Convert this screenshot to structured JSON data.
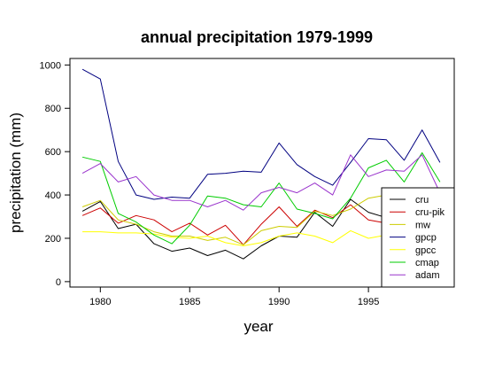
{
  "chart_data": {
    "type": "line",
    "title": "annual precipitation 1979-1999",
    "xlabel": "year",
    "ylabel": "precipitation (mm)",
    "x": [
      1979,
      1980,
      1981,
      1982,
      1983,
      1984,
      1985,
      1986,
      1987,
      1988,
      1989,
      1990,
      1991,
      1992,
      1993,
      1994,
      1995,
      1996,
      1997,
      1998,
      1999
    ],
    "xlim": [
      1978.3,
      1999.8
    ],
    "ylim": [
      -25,
      1030
    ],
    "xticks": [
      1980,
      1985,
      1990,
      1995
    ],
    "yticks": [
      0,
      200,
      400,
      600,
      800,
      1000
    ],
    "grid": false,
    "legend_position": "bottom-right",
    "series": [
      {
        "name": "cru",
        "color": "#000000",
        "values": [
          325,
          370,
          245,
          265,
          175,
          140,
          155,
          120,
          145,
          105,
          165,
          210,
          205,
          320,
          255,
          380,
          320,
          295,
          290,
          300,
          285
        ]
      },
      {
        "name": "cru-pik",
        "color": "#cc0000",
        "values": [
          305,
          340,
          270,
          305,
          285,
          230,
          270,
          215,
          260,
          170,
          265,
          345,
          255,
          330,
          295,
          355,
          285,
          270,
          255,
          260,
          250
        ]
      },
      {
        "name": "mw",
        "color": "#cccc00",
        "values": [
          345,
          375,
          285,
          265,
          230,
          210,
          210,
          190,
          205,
          170,
          235,
          255,
          250,
          325,
          305,
          335,
          385,
          400,
          390,
          390,
          380
        ]
      },
      {
        "name": "gpcp",
        "color": "#000080",
        "values": [
          980,
          935,
          555,
          400,
          380,
          390,
          385,
          495,
          500,
          510,
          505,
          640,
          540,
          485,
          445,
          550,
          660,
          655,
          560,
          700,
          550
        ]
      },
      {
        "name": "gpcc",
        "color": "#ffff00",
        "values": [
          230,
          230,
          225,
          225,
          220,
          205,
          200,
          210,
          180,
          165,
          180,
          210,
          225,
          210,
          180,
          235,
          200,
          215,
          220,
          225,
          215
        ]
      },
      {
        "name": "cmap",
        "color": "#00cc00",
        "values": [
          575,
          555,
          315,
          275,
          215,
          175,
          260,
          395,
          385,
          355,
          345,
          455,
          335,
          315,
          290,
          385,
          525,
          560,
          460,
          595,
          460
        ]
      },
      {
        "name": "adam",
        "color": "#9933cc",
        "values": [
          500,
          545,
          460,
          485,
          400,
          375,
          375,
          345,
          375,
          330,
          410,
          435,
          410,
          455,
          400,
          585,
          485,
          515,
          510,
          585,
          410
        ]
      }
    ]
  }
}
